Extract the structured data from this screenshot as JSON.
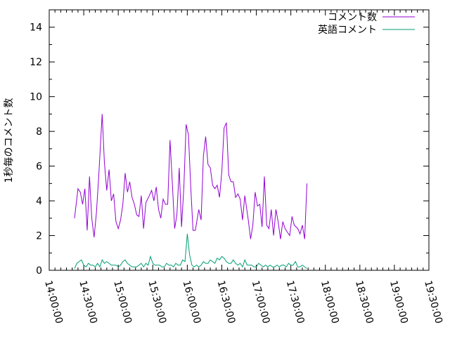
{
  "chart_data": {
    "type": "line",
    "title": "",
    "xlabel": "",
    "ylabel": "1秒毎のコメント数",
    "xlim": [
      "14:00:00",
      "19:30:00"
    ],
    "ylim": [
      0,
      15
    ],
    "x_ticks": [
      "14:00:00",
      "14:30:00",
      "15:00:00",
      "15:30:00",
      "16:00:00",
      "16:30:00",
      "17:00:00",
      "17:30:00",
      "18:00:00",
      "18:30:00",
      "19:00:00",
      "19:30:00"
    ],
    "y_ticks": [
      0,
      2,
      4,
      6,
      8,
      10,
      12,
      14
    ],
    "grid": false,
    "legend_position": "top-right",
    "series": [
      {
        "name": "コメント数",
        "color": "#9400d3",
        "points": [
          [
            "14:22:00",
            3.0
          ],
          [
            "14:25:00",
            4.7
          ],
          [
            "14:27:00",
            4.5
          ],
          [
            "14:29:00",
            3.8
          ],
          [
            "14:31:00",
            4.7
          ],
          [
            "14:33:00",
            2.3
          ],
          [
            "14:35:00",
            5.4
          ],
          [
            "14:37:00",
            3.0
          ],
          [
            "14:39:00",
            1.9
          ],
          [
            "14:41:00",
            3.3
          ],
          [
            "14:43:00",
            5.4
          ],
          [
            "14:46:00",
            9.0
          ],
          [
            "14:48:00",
            6.2
          ],
          [
            "14:50:00",
            4.6
          ],
          [
            "14:52:00",
            5.8
          ],
          [
            "14:54:00",
            4.0
          ],
          [
            "14:56:00",
            4.4
          ],
          [
            "14:58:00",
            2.8
          ],
          [
            "15:00:00",
            2.4
          ],
          [
            "15:02:00",
            2.9
          ],
          [
            "15:04:00",
            3.8
          ],
          [
            "15:06:00",
            5.6
          ],
          [
            "15:08:00",
            4.5
          ],
          [
            "15:10:00",
            5.1
          ],
          [
            "15:12:00",
            4.2
          ],
          [
            "15:14:00",
            3.8
          ],
          [
            "15:16:00",
            3.2
          ],
          [
            "15:18:00",
            3.1
          ],
          [
            "15:20:00",
            4.3
          ],
          [
            "15:22:00",
            2.4
          ],
          [
            "15:24:00",
            3.9
          ],
          [
            "15:27:00",
            4.3
          ],
          [
            "15:29:00",
            4.6
          ],
          [
            "15:31:00",
            4.0
          ],
          [
            "15:33:00",
            4.8
          ],
          [
            "15:35:00",
            3.5
          ],
          [
            "15:37:00",
            3.0
          ],
          [
            "15:39:00",
            4.1
          ],
          [
            "15:41:00",
            3.8
          ],
          [
            "15:43:00",
            3.8
          ],
          [
            "15:45:00",
            7.5
          ],
          [
            "15:47:00",
            5.0
          ],
          [
            "15:49:00",
            2.4
          ],
          [
            "15:51:00",
            3.2
          ],
          [
            "15:53:00",
            5.9
          ],
          [
            "15:55:00",
            2.5
          ],
          [
            "15:57:00",
            4.8
          ],
          [
            "15:59:00",
            8.4
          ],
          [
            "16:01:00",
            7.8
          ],
          [
            "16:03:00",
            4.8
          ],
          [
            "16:05:00",
            2.3
          ],
          [
            "16:07:00",
            2.3
          ],
          [
            "16:10:00",
            3.5
          ],
          [
            "16:12:00",
            2.9
          ],
          [
            "16:14:00",
            6.6
          ],
          [
            "16:16:00",
            7.7
          ],
          [
            "16:18:00",
            6.1
          ],
          [
            "16:20:00",
            5.9
          ],
          [
            "16:22:00",
            4.9
          ],
          [
            "16:24:00",
            4.7
          ],
          [
            "16:26:00",
            4.9
          ],
          [
            "16:28:00",
            4.2
          ],
          [
            "16:30:00",
            5.7
          ],
          [
            "16:32:00",
            8.2
          ],
          [
            "16:34:00",
            8.5
          ],
          [
            "16:36:00",
            5.5
          ],
          [
            "16:38:00",
            5.1
          ],
          [
            "16:40:00",
            5.1
          ],
          [
            "16:42:00",
            4.2
          ],
          [
            "16:44:00",
            4.4
          ],
          [
            "16:46:00",
            4.1
          ],
          [
            "16:48:00",
            2.9
          ],
          [
            "16:50:00",
            4.3
          ],
          [
            "16:53:00",
            2.9
          ],
          [
            "16:55:00",
            1.8
          ],
          [
            "16:57:00",
            2.6
          ],
          [
            "16:59:00",
            4.5
          ],
          [
            "17:01:00",
            3.7
          ],
          [
            "17:03:00",
            3.8
          ],
          [
            "17:05:00",
            2.5
          ],
          [
            "17:07:00",
            5.4
          ],
          [
            "17:09:00",
            2.6
          ],
          [
            "17:11:00",
            2.4
          ],
          [
            "17:13:00",
            3.5
          ],
          [
            "17:15:00",
            2.0
          ],
          [
            "17:17:00",
            3.5
          ],
          [
            "17:19:00",
            2.8
          ],
          [
            "17:21:00",
            1.8
          ],
          [
            "17:23:00",
            2.8
          ],
          [
            "17:25:00",
            2.4
          ],
          [
            "17:27:00",
            2.2
          ],
          [
            "17:29:00",
            2.0
          ],
          [
            "17:31:00",
            3.1
          ],
          [
            "17:33:00",
            2.6
          ],
          [
            "17:36:00",
            2.4
          ],
          [
            "17:38:00",
            2.1
          ],
          [
            "17:40:00",
            2.6
          ],
          [
            "17:42:00",
            1.8
          ],
          [
            "17:44:00",
            5.0
          ]
        ]
      },
      {
        "name": "英語コメント",
        "color": "#009e73",
        "points": [
          [
            "14:22:00",
            0.1
          ],
          [
            "14:24:00",
            0.4
          ],
          [
            "14:26:00",
            0.5
          ],
          [
            "14:28:00",
            0.6
          ],
          [
            "14:30:00",
            0.3
          ],
          [
            "14:32:00",
            0.2
          ],
          [
            "14:34:00",
            0.4
          ],
          [
            "14:36:00",
            0.3
          ],
          [
            "14:38:00",
            0.3
          ],
          [
            "14:40:00",
            0.2
          ],
          [
            "14:42:00",
            0.4
          ],
          [
            "14:44:00",
            0.2
          ],
          [
            "14:46:00",
            0.6
          ],
          [
            "14:48:00",
            0.4
          ],
          [
            "14:50:00",
            0.5
          ],
          [
            "14:52:00",
            0.4
          ],
          [
            "14:54:00",
            0.3
          ],
          [
            "14:56:00",
            0.3
          ],
          [
            "14:58:00",
            0.3
          ],
          [
            "15:00:00",
            0.2
          ],
          [
            "15:02:00",
            0.3
          ],
          [
            "15:04:00",
            0.5
          ],
          [
            "15:06:00",
            0.6
          ],
          [
            "15:08:00",
            0.4
          ],
          [
            "15:10:00",
            0.3
          ],
          [
            "15:12:00",
            0.2
          ],
          [
            "15:14:00",
            0.2
          ],
          [
            "15:16:00",
            0.2
          ],
          [
            "15:18:00",
            0.3
          ],
          [
            "15:20:00",
            0.4
          ],
          [
            "15:22:00",
            0.2
          ],
          [
            "15:24:00",
            0.4
          ],
          [
            "15:26:00",
            0.3
          ],
          [
            "15:28:00",
            0.8
          ],
          [
            "15:30:00",
            0.4
          ],
          [
            "15:32:00",
            0.3
          ],
          [
            "15:34:00",
            0.3
          ],
          [
            "15:36:00",
            0.3
          ],
          [
            "15:38:00",
            0.2
          ],
          [
            "15:40:00",
            0.2
          ],
          [
            "15:42:00",
            0.4
          ],
          [
            "15:44:00",
            0.3
          ],
          [
            "15:46:00",
            0.3
          ],
          [
            "15:48:00",
            0.2
          ],
          [
            "15:50:00",
            0.4
          ],
          [
            "15:52:00",
            0.3
          ],
          [
            "15:54:00",
            0.3
          ],
          [
            "15:56:00",
            0.6
          ],
          [
            "15:58:00",
            0.5
          ],
          [
            "16:00:00",
            2.1
          ],
          [
            "16:02:00",
            0.9
          ],
          [
            "16:04:00",
            0.3
          ],
          [
            "16:06:00",
            0.2
          ],
          [
            "16:08:00",
            0.3
          ],
          [
            "16:10:00",
            0.2
          ],
          [
            "16:12:00",
            0.3
          ],
          [
            "16:14:00",
            0.5
          ],
          [
            "16:16:00",
            0.4
          ],
          [
            "16:18:00",
            0.4
          ],
          [
            "16:20:00",
            0.6
          ],
          [
            "16:22:00",
            0.5
          ],
          [
            "16:24:00",
            0.4
          ],
          [
            "16:26:00",
            0.7
          ],
          [
            "16:28:00",
            0.6
          ],
          [
            "16:30:00",
            0.8
          ],
          [
            "16:32:00",
            0.7
          ],
          [
            "16:34:00",
            0.5
          ],
          [
            "16:36:00",
            0.4
          ],
          [
            "16:38:00",
            0.4
          ],
          [
            "16:40:00",
            0.6
          ],
          [
            "16:42:00",
            0.4
          ],
          [
            "16:44:00",
            0.3
          ],
          [
            "16:46:00",
            0.4
          ],
          [
            "16:48:00",
            0.2
          ],
          [
            "16:50:00",
            0.6
          ],
          [
            "16:52:00",
            0.3
          ],
          [
            "16:54:00",
            0.3
          ],
          [
            "16:56:00",
            0.3
          ],
          [
            "16:58:00",
            0.2
          ],
          [
            "17:00:00",
            0.2
          ],
          [
            "17:02:00",
            0.4
          ],
          [
            "17:04:00",
            0.3
          ],
          [
            "17:06:00",
            0.2
          ],
          [
            "17:08:00",
            0.3
          ],
          [
            "17:10:00",
            0.2
          ],
          [
            "17:12:00",
            0.3
          ],
          [
            "17:14:00",
            0.2
          ],
          [
            "17:16:00",
            0.2
          ],
          [
            "17:18:00",
            0.3
          ],
          [
            "17:20:00",
            0.2
          ],
          [
            "17:22:00",
            0.3
          ],
          [
            "17:24:00",
            0.3
          ],
          [
            "17:26:00",
            0.2
          ],
          [
            "17:28:00",
            0.4
          ],
          [
            "17:30:00",
            0.3
          ],
          [
            "17:32:00",
            0.3
          ],
          [
            "17:34:00",
            0.5
          ],
          [
            "17:36:00",
            0.2
          ],
          [
            "17:38:00",
            0.2
          ],
          [
            "17:40:00",
            0.3
          ],
          [
            "17:42:00",
            0.2
          ],
          [
            "17:44:00",
            0.1
          ]
        ]
      }
    ]
  }
}
